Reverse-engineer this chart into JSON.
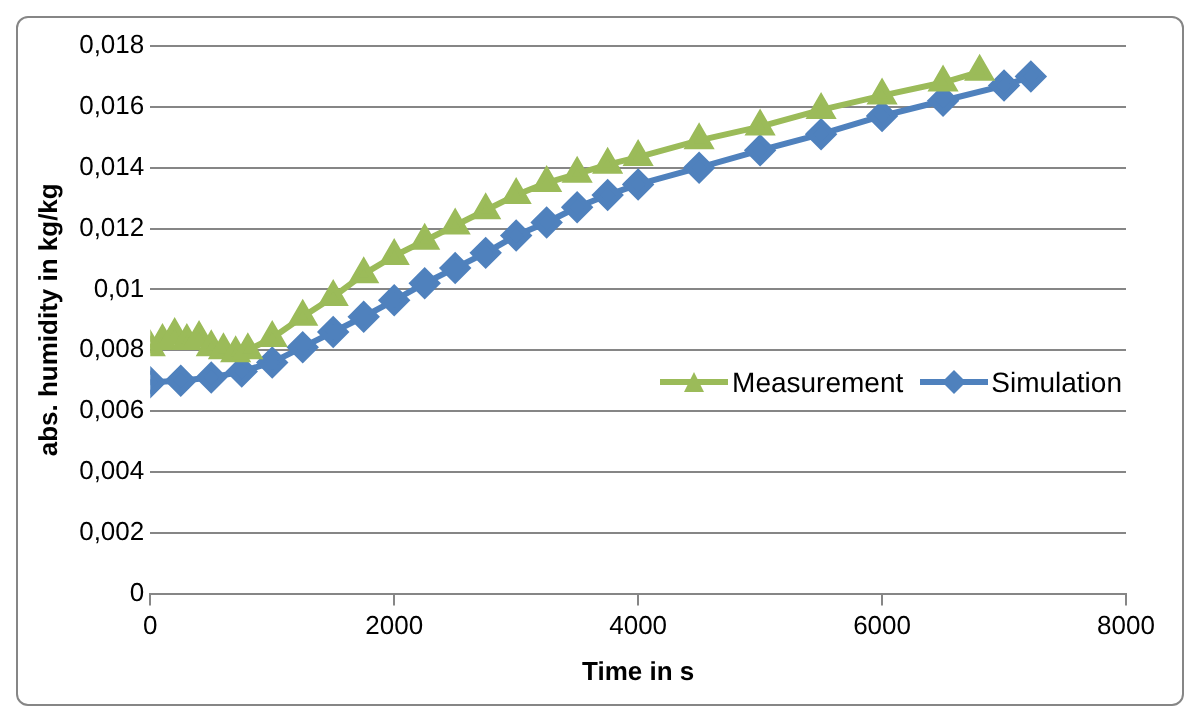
{
  "chart_data": {
    "type": "line",
    "xlabel": "Time in s",
    "ylabel": "abs. humidity in kg/kg",
    "xlim": [
      0,
      8000
    ],
    "xticks": [
      0,
      2000,
      4000,
      6000,
      8000
    ],
    "ylim": [
      0,
      0.018
    ],
    "yticks": [
      {
        "value": 0,
        "label": "0"
      },
      {
        "value": 0.002,
        "label": "0,002"
      },
      {
        "value": 0.004,
        "label": "0,004"
      },
      {
        "value": 0.006,
        "label": "0,006"
      },
      {
        "value": 0.008,
        "label": "0,008"
      },
      {
        "value": 0.01,
        "label": "0,01"
      },
      {
        "value": 0.012,
        "label": "0,012"
      },
      {
        "value": 0.014,
        "label": "0,014"
      },
      {
        "value": 0.016,
        "label": "0,016"
      },
      {
        "value": 0.018,
        "label": "0,018"
      }
    ],
    "grid": "y",
    "legend": "right",
    "series": [
      {
        "name": "Measurement",
        "color": "#9bbb59",
        "marker": "triangle",
        "x": [
          0,
          100,
          200,
          300,
          400,
          500,
          600,
          700,
          800,
          1000,
          1250,
          1500,
          1750,
          2000,
          2250,
          2500,
          2750,
          3000,
          3250,
          3500,
          3750,
          4000,
          4500,
          5000,
          5500,
          6000,
          6500,
          6800
        ],
        "values": [
          0.0081,
          0.0083,
          0.0085,
          0.0083,
          0.0084,
          0.0081,
          0.008,
          0.0079,
          0.008,
          0.0084,
          0.0091,
          0.00975,
          0.0105,
          0.0111,
          0.0116,
          0.0121,
          0.0126,
          0.0131,
          0.0135,
          0.0138,
          0.0141,
          0.01435,
          0.0149,
          0.01535,
          0.0159,
          0.01637,
          0.0168,
          0.01715
        ]
      },
      {
        "name": "Simulation",
        "color": "#4f81bd",
        "marker": "diamond",
        "x": [
          0,
          250,
          500,
          750,
          1000,
          1250,
          1500,
          1750,
          2000,
          2250,
          2500,
          2750,
          3000,
          3250,
          3500,
          3750,
          4000,
          4500,
          5000,
          5500,
          6000,
          6500,
          7000,
          7220
        ],
        "values": [
          0.00695,
          0.007,
          0.0071,
          0.0073,
          0.0076,
          0.0081,
          0.0086,
          0.0091,
          0.00964,
          0.0102,
          0.0107,
          0.0112,
          0.01177,
          0.0122,
          0.0127,
          0.0131,
          0.01345,
          0.014,
          0.01457,
          0.0151,
          0.0157,
          0.0162,
          0.0167,
          0.017
        ]
      }
    ]
  }
}
